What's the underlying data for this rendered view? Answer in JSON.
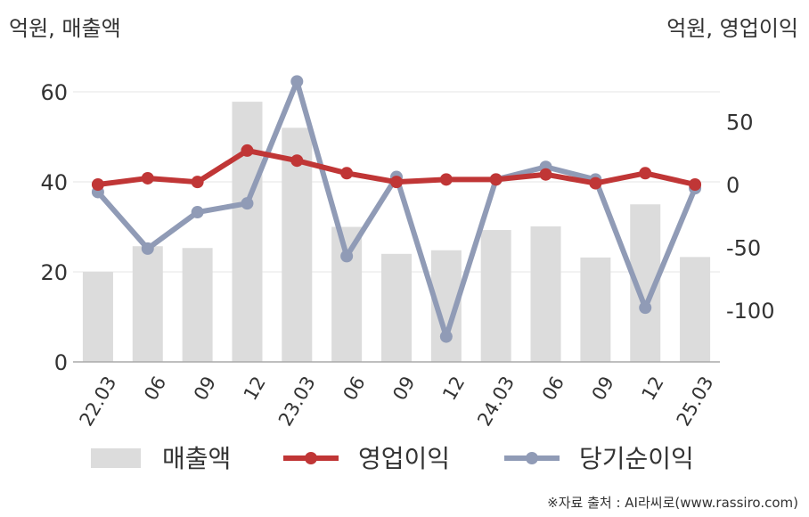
{
  "units": {
    "left": "억원, 매출액",
    "right": "억원, 영업이익"
  },
  "source": "※자료 출처 : AI라씨로(www.rassiro.com)",
  "colors": {
    "revenue": "#dcdcdc",
    "operating": "#c03636",
    "net": "#909bb6",
    "grid": "#e6e6e6",
    "axis": "#aaaaaa"
  },
  "chart_data": {
    "type": "bar+line",
    "categories": [
      "22.03",
      "06",
      "09",
      "12",
      "23.03",
      "06",
      "09",
      "12",
      "24.03",
      "06",
      "09",
      "12",
      "25.03"
    ],
    "left_axis": {
      "ticks": [
        0,
        20,
        40,
        60
      ],
      "ylim": [
        0,
        60
      ]
    },
    "right_axis": {
      "ticks": [
        -100,
        -50,
        0,
        50
      ]
    },
    "series": [
      {
        "name": "매출액",
        "type": "bar",
        "axis": "left",
        "values": [
          20,
          25.7,
          25.3,
          57.8,
          52,
          30,
          24,
          24.8,
          29.3,
          30.1,
          23.2,
          35,
          23.3
        ]
      },
      {
        "name": "영업이익",
        "type": "line",
        "axis": "right",
        "values": [
          0,
          5,
          2,
          27,
          19,
          9,
          2,
          4,
          4,
          8,
          1,
          9,
          0
        ]
      },
      {
        "name": "당기순이익",
        "type": "line",
        "axis": "right",
        "values": [
          -6,
          -51,
          -22,
          -15,
          82,
          -57,
          6,
          -121,
          4,
          14,
          4,
          -98,
          -3
        ]
      }
    ]
  }
}
